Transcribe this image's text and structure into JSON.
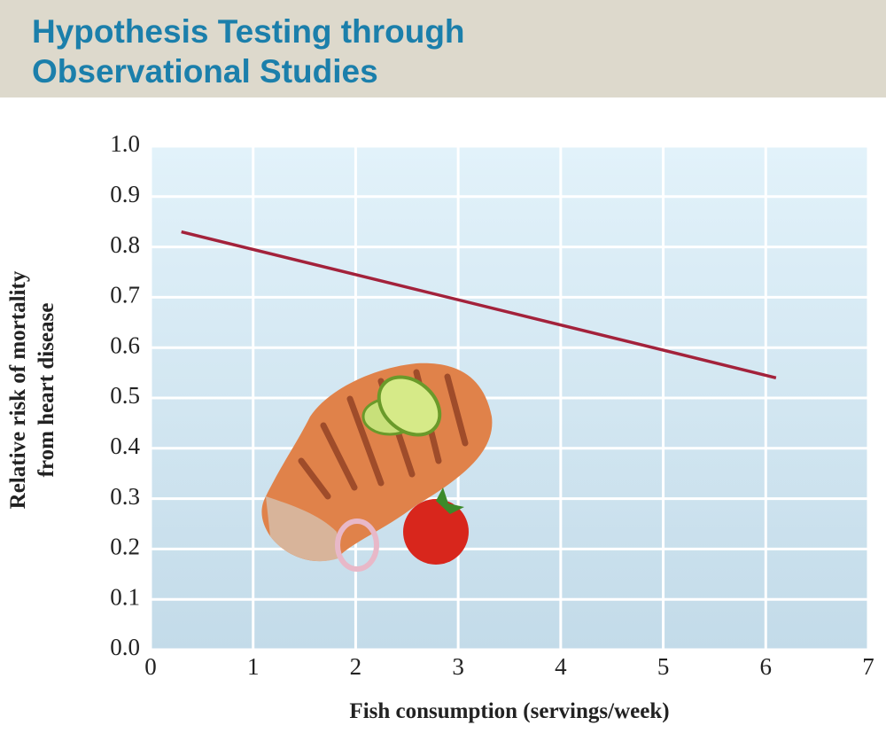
{
  "chart_data": {
    "type": "line",
    "title": [
      "Hypothesis Testing through",
      "Observational Studies"
    ],
    "xlabel": "Fish consumption (servings/week)",
    "ylabel": [
      "Relative risk of mortality",
      "from heart disease"
    ],
    "x": [
      0.3,
      6.1
    ],
    "values": [
      0.83,
      0.54
    ],
    "color": "#a3223b",
    "xlim": [
      0,
      7
    ],
    "xticks": [
      0,
      1,
      2,
      3,
      4,
      5,
      6,
      7
    ],
    "ylim": [
      0,
      1
    ],
    "yticks": [
      {
        "value": 0,
        "label": "0.0"
      },
      0.1,
      0.2,
      0.3,
      0.4,
      0.5,
      0.6,
      0.7,
      0.8,
      0.9,
      {
        "value": 1,
        "label": "1.0"
      }
    ],
    "grid": true
  }
}
